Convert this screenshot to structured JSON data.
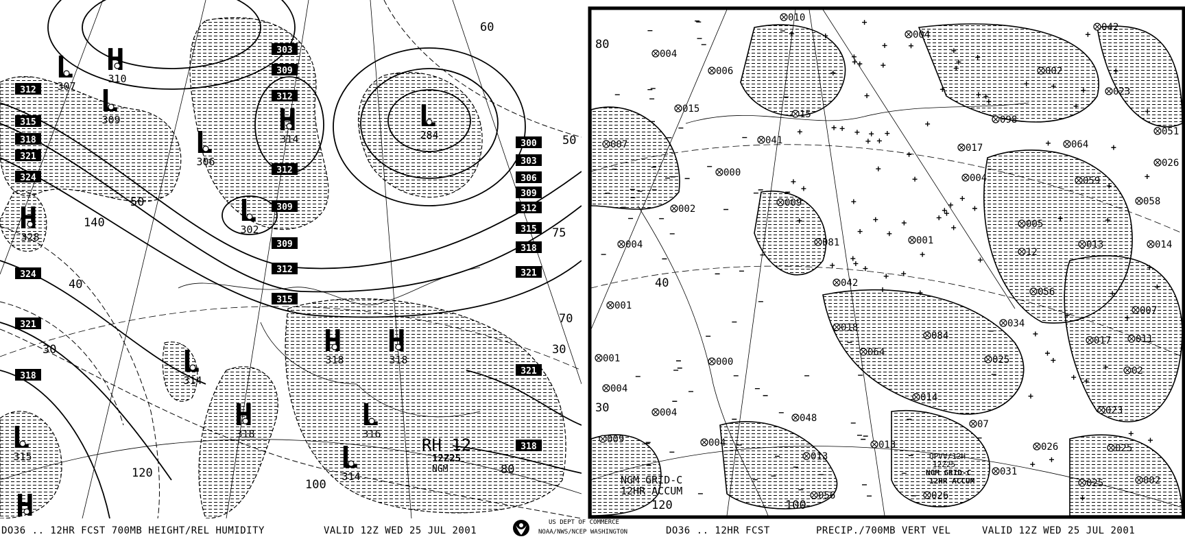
{
  "left_panel": {
    "footer_left": "DO36 .. 12HR FCST 700MB HEIGHT/REL HUMIDITY",
    "footer_valid": "VALID 12Z WED 25 JUL 2001",
    "label_title": "RH 12",
    "label_time": "12Z25",
    "label_model": "NGM",
    "height_labels": [
      "303",
      "309",
      "312",
      "312",
      "309",
      "309",
      "312",
      "315",
      "312",
      "315",
      "318",
      "321",
      "324",
      "324",
      "321",
      "318",
      "300",
      "303",
      "306",
      "309",
      "312",
      "315",
      "318",
      "321",
      "321",
      "318"
    ],
    "centers": [
      {
        "type": "L",
        "value": "307"
      },
      {
        "type": "H",
        "value": "310"
      },
      {
        "type": "L",
        "value": "309"
      },
      {
        "type": "L",
        "value": "306"
      },
      {
        "type": "H",
        "value": "314"
      },
      {
        "type": "L",
        "value": "284"
      },
      {
        "type": "L",
        "value": "302"
      },
      {
        "type": "H",
        "value": "328"
      },
      {
        "type": "L",
        "value": "314"
      },
      {
        "type": "H",
        "value": "318"
      },
      {
        "type": "H",
        "value": "318"
      },
      {
        "type": "H",
        "value": "318"
      },
      {
        "type": "L",
        "value": "316"
      },
      {
        "type": "L",
        "value": "314"
      },
      {
        "type": "L",
        "value": "315"
      },
      {
        "type": "H",
        "value": ""
      }
    ],
    "rh_contour_labels": [
      "60",
      "50",
      "140",
      "40",
      "30",
      "120",
      "100",
      "80",
      "75",
      "70",
      "30",
      "50"
    ],
    "hatch_color": "#000000"
  },
  "agency": {
    "line1": "US DEPT OF COMMERCE",
    "line2": "NOAA/NWS/NCEP WASHINGTON",
    "logo": "noaa-logo"
  },
  "right_panel": {
    "footer_left": "DO36 .. 12HR FCST",
    "footer_title": "PRECIP./700MB VERT VEL",
    "footer_valid": "VALID 12Z WED 25 JUL 2001",
    "label_line1": "NGM GRID-C",
    "label_line2": "12HR ACCUM",
    "inset_line1": "QPVV/12H",
    "inset_line2": "12Z25",
    "inset_line3": "NGM GRID-C",
    "inset_line4": "12HR ACCUM",
    "precip_values": [
      "010",
      "004",
      "042",
      "004",
      "006",
      "002",
      "023",
      "015",
      "15",
      "098",
      "051",
      "007",
      "041",
      "017",
      "064",
      "026",
      "000",
      "004",
      "059",
      "009",
      "002",
      "058",
      "005",
      "004",
      "081",
      "001",
      "013",
      "014",
      "12",
      "042",
      "056",
      "001",
      "007",
      "018",
      "034",
      "084",
      "017",
      "011",
      "064",
      "025",
      "001",
      "000",
      "02",
      "004",
      "014",
      "023",
      "004",
      "048",
      "07",
      "004",
      "013",
      "026",
      "025",
      "009",
      "013",
      "031",
      "025",
      "002",
      "056",
      "026"
    ],
    "contour_labels": [
      "80",
      "40",
      "30",
      "120",
      "100"
    ]
  }
}
